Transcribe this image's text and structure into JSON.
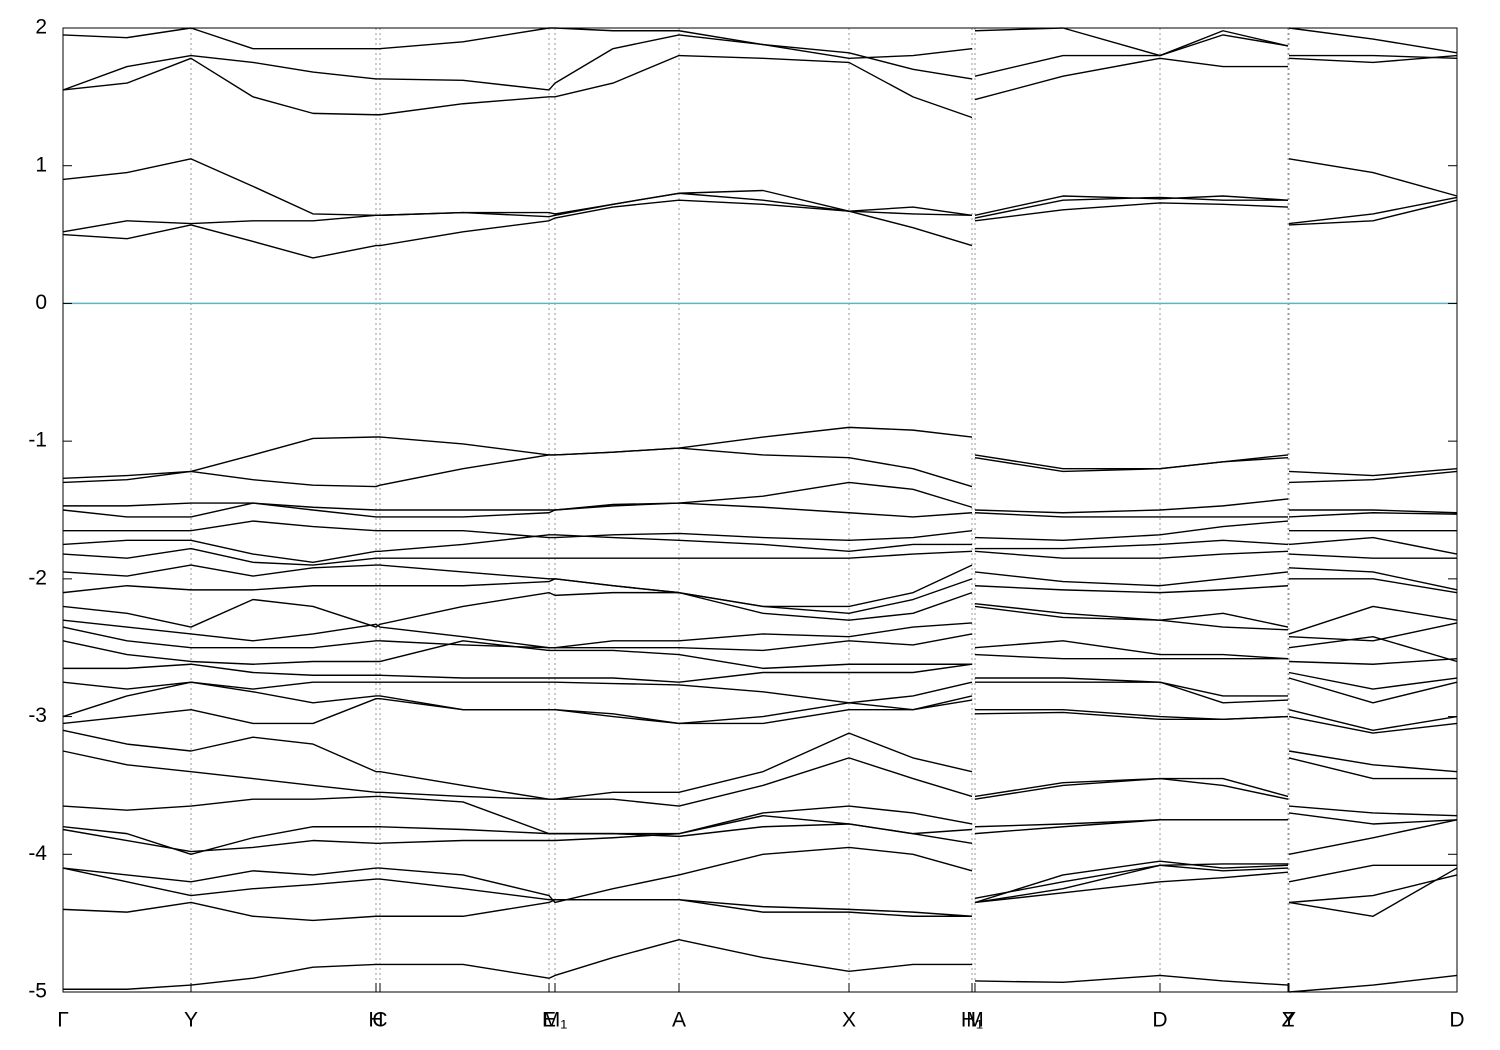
{
  "chart_data": {
    "type": "line",
    "x": [
      0,
      0.64,
      1.28,
      1.9,
      2.5,
      3.13,
      3.17,
      4.0,
      4.86,
      4.92,
      5.5,
      6.16,
      7.0,
      7.86,
      8.5,
      9.09,
      9.1,
      9.12,
      10.0,
      10.97,
      11.6,
      12.25,
      12.255,
      12.26,
      13.1,
      13.94
    ],
    "xlim": [
      0,
      13.94
    ],
    "ylim": [
      -5,
      2
    ],
    "xticks": [
      {
        "value": 0,
        "label": "Γ"
      },
      {
        "value": 1.28,
        "label": "Y"
      },
      {
        "value": 3.13,
        "label": "H"
      },
      {
        "value": 3.17,
        "label": "C"
      },
      {
        "value": 4.86,
        "label": "E"
      },
      {
        "value": 4.92,
        "label": "M₁"
      },
      {
        "value": 6.16,
        "label": "A"
      },
      {
        "value": 7.86,
        "label": "X"
      },
      {
        "value": 9.09,
        "label": "H₁"
      },
      {
        "value": 9.12,
        "label": "M"
      },
      {
        "value": 10.97,
        "label": "D"
      },
      {
        "value": 12.25,
        "label": "Z"
      },
      {
        "value": 12.26,
        "label": "Y"
      },
      {
        "value": 13.94,
        "label": "D"
      }
    ],
    "yticks": [
      -5,
      -4,
      -3,
      -2,
      -1,
      0,
      1,
      2
    ],
    "grid": true,
    "line_color": "#000000",
    "fermi_level": 0,
    "fermi_color": "#5bb5c8",
    "series": [
      {
        "values": [
          0.5,
          0.47,
          0.57,
          0.45,
          0.33,
          0.42,
          0.42,
          0.52,
          0.6,
          0.62,
          0.7,
          0.75,
          0.72,
          0.67,
          0.55,
          0.42,
          null,
          0.6,
          0.68,
          0.73,
          0.72,
          0.7,
          null,
          0.57,
          0.6,
          0.75
        ]
      },
      {
        "values": [
          0.52,
          0.6,
          0.58,
          0.6,
          0.6,
          0.64,
          0.64,
          0.66,
          0.63,
          0.64,
          0.72,
          0.8,
          0.75,
          0.67,
          0.65,
          0.64,
          null,
          0.64,
          0.78,
          0.76,
          0.78,
          0.75,
          null,
          0.58,
          0.65,
          0.77
        ]
      },
      {
        "values": [
          0.9,
          0.95,
          1.05,
          0.85,
          0.65,
          0.64,
          0.64,
          0.66,
          0.66,
          0.65,
          0.72,
          0.8,
          0.82,
          0.67,
          0.7,
          0.64,
          null,
          0.62,
          0.75,
          0.77,
          0.75,
          0.75,
          null,
          1.05,
          0.95,
          0.78
        ]
      },
      {
        "values": [
          1.55,
          1.6,
          1.78,
          1.5,
          1.38,
          1.37,
          1.37,
          1.45,
          1.5,
          1.5,
          1.6,
          1.8,
          1.78,
          1.75,
          1.5,
          1.35,
          null,
          1.48,
          1.65,
          1.78,
          1.72,
          1.72,
          null,
          1.78,
          1.75,
          1.8
        ]
      },
      {
        "values": [
          1.55,
          1.72,
          1.8,
          1.75,
          1.68,
          1.63,
          1.63,
          1.62,
          1.55,
          1.6,
          1.85,
          1.95,
          1.88,
          1.82,
          1.7,
          1.63,
          null,
          1.65,
          1.8,
          1.8,
          1.95,
          1.87,
          null,
          1.8,
          1.8,
          1.78
        ]
      },
      {
        "values": [
          1.95,
          1.93,
          2.0,
          1.85,
          1.85,
          1.85,
          1.85,
          1.9,
          2.0,
          2.0,
          1.98,
          1.98,
          1.88,
          1.78,
          1.8,
          1.85,
          null,
          1.98,
          2.0,
          1.8,
          1.98,
          1.87,
          null,
          2.0,
          1.92,
          1.82
        ]
      },
      {
        "values": [
          -1.27,
          -1.25,
          -1.22,
          -1.1,
          -0.98,
          -0.97,
          -0.97,
          -1.02,
          -1.1,
          -1.1,
          -1.08,
          -1.05,
          -0.97,
          -0.9,
          -0.92,
          -0.97,
          null,
          -1.1,
          -1.2,
          -1.2,
          -1.15,
          -1.1,
          null,
          -1.22,
          -1.25,
          -1.2
        ]
      },
      {
        "values": [
          -1.3,
          -1.28,
          -1.22,
          -1.28,
          -1.32,
          -1.33,
          -1.32,
          -1.2,
          -1.1,
          -1.1,
          -1.08,
          -1.05,
          -1.1,
          -1.12,
          -1.2,
          -1.33,
          null,
          -1.12,
          -1.22,
          -1.2,
          -1.15,
          -1.12,
          null,
          -1.3,
          -1.28,
          -1.22
        ]
      },
      {
        "values": [
          -1.47,
          -1.47,
          -1.45,
          -1.45,
          -1.48,
          -1.5,
          -1.5,
          -1.5,
          -1.5,
          -1.5,
          -1.46,
          -1.45,
          -1.4,
          -1.3,
          -1.35,
          -1.48,
          null,
          -1.5,
          -1.52,
          -1.5,
          -1.47,
          -1.42,
          null,
          -1.5,
          -1.5,
          -1.52
        ]
      },
      {
        "values": [
          -1.5,
          -1.55,
          -1.55,
          -1.45,
          -1.5,
          -1.55,
          -1.55,
          -1.55,
          -1.52,
          -1.5,
          -1.47,
          -1.45,
          -1.48,
          -1.52,
          -1.55,
          -1.52,
          null,
          -1.52,
          -1.55,
          -1.55,
          -1.55,
          -1.55,
          null,
          -1.55,
          -1.52,
          -1.53
        ]
      },
      {
        "values": [
          -1.65,
          -1.65,
          -1.65,
          -1.58,
          -1.62,
          -1.65,
          -1.65,
          -1.65,
          -1.7,
          -1.7,
          -1.68,
          -1.67,
          -1.7,
          -1.72,
          -1.7,
          -1.65,
          null,
          -1.7,
          -1.72,
          -1.68,
          -1.62,
          -1.58,
          null,
          -1.65,
          -1.65,
          -1.65
        ]
      },
      {
        "values": [
          -1.75,
          -1.72,
          -1.72,
          -1.82,
          -1.88,
          -1.8,
          -1.8,
          -1.75,
          -1.68,
          -1.68,
          -1.7,
          -1.72,
          -1.75,
          -1.8,
          -1.75,
          -1.75,
          null,
          -1.78,
          -1.78,
          -1.75,
          -1.72,
          -1.75,
          null,
          -1.75,
          -1.7,
          -1.82
        ]
      },
      {
        "values": [
          -1.82,
          -1.85,
          -1.78,
          -1.88,
          -1.9,
          -1.85,
          -1.85,
          -1.85,
          -1.85,
          -1.85,
          -1.85,
          -1.85,
          -1.85,
          -1.85,
          -1.82,
          -1.8,
          null,
          -1.8,
          -1.85,
          -1.85,
          -1.82,
          -1.8,
          null,
          -1.82,
          -1.85,
          -1.85
        ]
      },
      {
        "values": [
          -1.95,
          -1.98,
          -1.9,
          -1.98,
          -1.92,
          -1.9,
          -1.9,
          -1.95,
          -2.0,
          -2.0,
          -2.05,
          -2.1,
          -2.2,
          -2.2,
          -2.1,
          -1.9,
          null,
          -1.95,
          -2.02,
          -2.05,
          -2.0,
          -1.95,
          null,
          -1.92,
          -1.95,
          -2.08
        ]
      },
      {
        "values": [
          -2.1,
          -2.05,
          -2.08,
          -2.08,
          -2.05,
          -2.05,
          -2.05,
          -2.05,
          -2.02,
          -2.0,
          -2.05,
          -2.1,
          -2.2,
          -2.25,
          -2.15,
          -2.0,
          null,
          -2.05,
          -2.08,
          -2.1,
          -2.08,
          -2.05,
          null,
          -2.0,
          -2.0,
          -2.1
        ]
      },
      {
        "values": [
          -2.2,
          -2.25,
          -2.35,
          -2.15,
          -2.2,
          -2.35,
          -2.33,
          -2.2,
          -2.1,
          -2.12,
          -2.1,
          -2.1,
          -2.25,
          -2.3,
          -2.25,
          -2.1,
          null,
          -2.18,
          -2.25,
          -2.3,
          -2.25,
          -2.35,
          null,
          -2.4,
          -2.2,
          -2.3
        ]
      },
      {
        "values": [
          -2.3,
          -2.35,
          -2.4,
          -2.45,
          -2.4,
          -2.33,
          -2.35,
          -2.42,
          -2.5,
          -2.5,
          -2.45,
          -2.45,
          -2.4,
          -2.42,
          -2.35,
          -2.32,
          null,
          -2.2,
          -2.28,
          -2.3,
          -2.35,
          -2.37,
          null,
          -2.42,
          -2.45,
          -2.32
        ]
      },
      {
        "values": [
          -2.35,
          -2.45,
          -2.5,
          -2.5,
          -2.5,
          -2.45,
          -2.45,
          -2.48,
          -2.5,
          -2.5,
          -2.5,
          -2.5,
          -2.52,
          -2.45,
          -2.48,
          -2.4,
          null,
          -2.5,
          -2.45,
          -2.55,
          -2.55,
          -2.58,
          null,
          -2.5,
          -2.42,
          -2.6
        ]
      },
      {
        "values": [
          -2.45,
          -2.55,
          -2.6,
          -2.62,
          -2.6,
          -2.6,
          -2.6,
          -2.45,
          -2.52,
          -2.52,
          -2.52,
          -2.55,
          -2.65,
          -2.62,
          -2.62,
          -2.62,
          null,
          -2.55,
          -2.58,
          -2.58,
          -2.58,
          -2.58,
          null,
          -2.6,
          -2.62,
          -2.58
        ]
      },
      {
        "values": [
          -2.65,
          -2.65,
          -2.62,
          -2.68,
          -2.7,
          -2.7,
          -2.7,
          -2.72,
          -2.72,
          -2.72,
          -2.72,
          -2.75,
          -2.68,
          -2.68,
          -2.68,
          -2.62,
          null,
          -2.72,
          -2.72,
          -2.75,
          -2.85,
          -2.85,
          null,
          -2.68,
          -2.8,
          -2.72
        ]
      },
      {
        "values": [
          -2.75,
          -2.8,
          -2.75,
          -2.8,
          -2.75,
          -2.75,
          -2.75,
          -2.75,
          -2.75,
          -2.75,
          -2.76,
          -2.77,
          -2.82,
          -2.9,
          -2.85,
          -2.75,
          null,
          -2.75,
          -2.75,
          -2.75,
          -2.9,
          -2.88,
          null,
          -2.72,
          -2.9,
          -2.75
        ]
      },
      {
        "values": [
          -3.0,
          -2.85,
          -2.75,
          -2.82,
          -2.9,
          -2.85,
          -2.85,
          -2.95,
          -2.95,
          -2.95,
          -2.98,
          -3.05,
          -3.0,
          -2.9,
          -2.95,
          -2.85,
          null,
          -2.95,
          -2.95,
          -3.0,
          -3.02,
          -3.0,
          null,
          -2.95,
          -3.1,
          -3.0
        ]
      },
      {
        "values": [
          -3.05,
          -3.0,
          -2.95,
          -3.05,
          -3.05,
          -2.87,
          -2.87,
          -2.95,
          -2.95,
          -2.95,
          -3.0,
          -3.05,
          -3.05,
          -2.95,
          -2.95,
          -2.88,
          null,
          -2.98,
          -2.97,
          -3.02,
          -3.02,
          -3.0,
          null,
          -3.0,
          -3.12,
          -3.05
        ]
      },
      {
        "values": [
          -3.1,
          -3.2,
          -3.25,
          -3.15,
          -3.2,
          -3.4,
          -3.4,
          -3.5,
          -3.6,
          -3.6,
          -3.55,
          -3.55,
          -3.4,
          -3.12,
          -3.3,
          -3.4,
          null,
          -3.6,
          -3.5,
          -3.45,
          -3.45,
          -3.58,
          null,
          -3.25,
          -3.35,
          -3.4
        ]
      },
      {
        "values": [
          -3.25,
          -3.35,
          -3.4,
          -3.45,
          -3.5,
          -3.55,
          -3.55,
          -3.58,
          -3.6,
          -3.6,
          -3.6,
          -3.65,
          -3.5,
          -3.3,
          -3.45,
          -3.58,
          null,
          -3.58,
          -3.48,
          -3.45,
          -3.5,
          -3.6,
          null,
          -3.3,
          -3.45,
          -3.45
        ]
      },
      {
        "values": [
          -3.65,
          -3.68,
          -3.65,
          -3.6,
          -3.6,
          -3.58,
          -3.58,
          -3.62,
          -3.85,
          -3.85,
          -3.85,
          -3.85,
          -3.7,
          -3.65,
          -3.7,
          -3.78,
          null,
          -3.8,
          -3.78,
          -3.75,
          -3.75,
          -3.75,
          null,
          -3.65,
          -3.7,
          -3.72
        ]
      },
      {
        "values": [
          -3.8,
          -3.85,
          -4.0,
          -3.88,
          -3.8,
          -3.8,
          -3.8,
          -3.82,
          -3.85,
          -3.85,
          -3.85,
          -3.87,
          -3.8,
          -3.78,
          -3.85,
          -3.82,
          null,
          -3.85,
          -3.8,
          -3.75,
          -3.75,
          -3.75,
          null,
          -3.7,
          -3.78,
          -3.75
        ]
      },
      {
        "values": [
          -3.82,
          -3.9,
          -3.98,
          -3.95,
          -3.9,
          -3.92,
          -3.92,
          -3.9,
          -3.9,
          -3.9,
          -3.88,
          -3.85,
          -3.72,
          -3.78,
          -3.85,
          -3.92,
          null,
          -4.35,
          -4.15,
          -4.05,
          -4.1,
          -4.08,
          null,
          -4.0,
          -3.88,
          -3.75
        ]
      },
      {
        "values": [
          -4.1,
          -4.15,
          -4.2,
          -4.12,
          -4.15,
          -4.1,
          -4.1,
          -4.15,
          -4.3,
          -4.35,
          -4.25,
          -4.15,
          -4.0,
          -3.95,
          -4.0,
          -4.12,
          null,
          -4.32,
          -4.2,
          -4.08,
          -4.07,
          -4.07,
          null,
          -4.2,
          -4.08,
          -4.08
        ]
      },
      {
        "values": [
          -4.1,
          -4.2,
          -4.3,
          -4.25,
          -4.22,
          -4.18,
          -4.18,
          -4.25,
          -4.33,
          -4.33,
          -4.33,
          -4.33,
          -4.38,
          -4.4,
          -4.42,
          -4.45,
          null,
          -4.35,
          -4.25,
          -4.08,
          -4.12,
          -4.1,
          null,
          -4.35,
          -4.3,
          -4.15
        ]
      },
      {
        "values": [
          -4.4,
          -4.42,
          -4.35,
          -4.45,
          -4.48,
          -4.45,
          -4.45,
          -4.45,
          -4.35,
          -4.33,
          -4.33,
          -4.33,
          -4.42,
          -4.42,
          -4.45,
          -4.45,
          null,
          -4.35,
          -4.28,
          -4.2,
          -4.17,
          -4.13,
          null,
          -4.35,
          -4.45,
          -4.1
        ]
      },
      {
        "values": [
          -4.98,
          -4.98,
          -4.95,
          -4.9,
          -4.82,
          -4.8,
          -4.8,
          -4.8,
          -4.9,
          -4.88,
          -4.75,
          -4.62,
          -4.75,
          -4.85,
          -4.8,
          -4.8,
          null,
          -4.92,
          -4.93,
          -4.88,
          -4.92,
          -4.95,
          null,
          -5.0,
          -4.95,
          -4.88
        ]
      }
    ]
  }
}
